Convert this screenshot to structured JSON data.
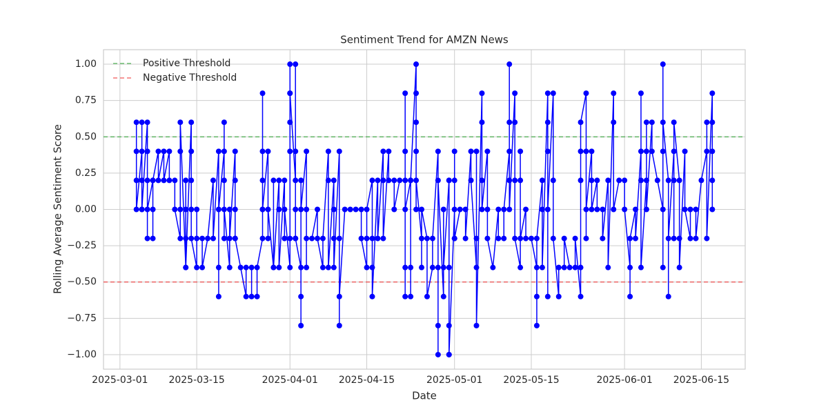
{
  "chart_data": {
    "type": "line",
    "title": "Sentiment Trend for AMZN News",
    "x_label": "Date",
    "y_label": "Rolling Average Sentiment Score",
    "grid": true,
    "legend": "upper left",
    "xlim": [
      "2025-02-26",
      "2025-06-23"
    ],
    "xticks": [
      "2025-03-01",
      "2025-03-15",
      "2025-04-01",
      "2025-04-15",
      "2025-05-01",
      "2025-05-15",
      "2025-06-01",
      "2025-06-15"
    ],
    "ylim": [
      -1.1,
      1.1
    ],
    "yticks": [
      {
        "value": -1,
        "label": "−1.00"
      },
      {
        "value": -0.75,
        "label": "−0.75"
      },
      {
        "value": -0.5,
        "label": "−0.50"
      },
      {
        "value": -0.25,
        "label": "−0.25"
      },
      {
        "value": 0,
        "label": "0.00"
      },
      {
        "value": 0.25,
        "label": "0.25"
      },
      {
        "value": 0.5,
        "label": "0.50"
      },
      {
        "value": 0.75,
        "label": "0.75"
      },
      {
        "value": 1,
        "label": "1.00"
      }
    ],
    "thresholds": [
      {
        "name": "Positive Threshold",
        "value": 0.5,
        "color": "#4caf50"
      },
      {
        "name": "Negative Threshold",
        "value": -0.5,
        "color": "#f05050"
      }
    ],
    "color": "#0000ff",
    "x": [
      "2025-03-04",
      "2025-03-04",
      "2025-03-04",
      "2025-03-04",
      "2025-03-05",
      "2025-03-05",
      "2025-03-05",
      "2025-03-05",
      "2025-03-05",
      "2025-03-06",
      "2025-03-06",
      "2025-03-06",
      "2025-03-06",
      "2025-03-06",
      "2025-03-07",
      "2025-03-07",
      "2025-03-07",
      "2025-03-07",
      "2025-03-08",
      "2025-03-08",
      "2025-03-09",
      "2025-03-09",
      "2025-03-10",
      "2025-03-10",
      "2025-03-11",
      "2025-03-11",
      "2025-03-12",
      "2025-03-12",
      "2025-03-12",
      "2025-03-12",
      "2025-03-13",
      "2025-03-13",
      "2025-03-13",
      "2025-03-13",
      "2025-03-13",
      "2025-03-14",
      "2025-03-14",
      "2025-03-14",
      "2025-03-14",
      "2025-03-14",
      "2025-03-15",
      "2025-03-15",
      "2025-03-15",
      "2025-03-16",
      "2025-03-16",
      "2025-03-17",
      "2025-03-18",
      "2025-03-18",
      "2025-03-19",
      "2025-03-19",
      "2025-03-19",
      "2025-03-19",
      "2025-03-20",
      "2025-03-20",
      "2025-03-20",
      "2025-03-20",
      "2025-03-20",
      "2025-03-21",
      "2025-03-21",
      "2025-03-21",
      "2025-03-22",
      "2025-03-22",
      "2025-03-22",
      "2025-03-22",
      "2025-03-22",
      "2025-03-23",
      "2025-03-24",
      "2025-03-24",
      "2025-03-25",
      "2025-03-25",
      "2025-03-26",
      "2025-03-26",
      "2025-03-27",
      "2025-03-27",
      "2025-03-27",
      "2025-03-27",
      "2025-03-27",
      "2025-03-27",
      "2025-03-28",
      "2025-03-28",
      "2025-03-28",
      "2025-03-29",
      "2025-03-29",
      "2025-03-29",
      "2025-03-30",
      "2025-03-30",
      "2025-03-30",
      "2025-03-31",
      "2025-03-31",
      "2025-03-31",
      "2025-04-01",
      "2025-04-01",
      "2025-04-01",
      "2025-04-01",
      "2025-04-01",
      "2025-04-01",
      "2025-04-01",
      "2025-04-02",
      "2025-04-02",
      "2025-04-02",
      "2025-04-02",
      "2025-04-02",
      "2025-04-02",
      "2025-04-03",
      "2025-04-03",
      "2025-04-03",
      "2025-04-03",
      "2025-04-03",
      "2025-04-04",
      "2025-04-04",
      "2025-04-04",
      "2025-04-04",
      "2025-04-05",
      "2025-04-06",
      "2025-04-06",
      "2025-04-07",
      "2025-04-07",
      "2025-04-08",
      "2025-04-08",
      "2025-04-08",
      "2025-04-09",
      "2025-04-09",
      "2025-04-09",
      "2025-04-09",
      "2025-04-10",
      "2025-04-10",
      "2025-04-10",
      "2025-04-10",
      "2025-04-11",
      "2025-04-12",
      "2025-04-13",
      "2025-04-14",
      "2025-04-14",
      "2025-04-15",
      "2025-04-15",
      "2025-04-15",
      "2025-04-16",
      "2025-04-16",
      "2025-04-16",
      "2025-04-16",
      "2025-04-17",
      "2025-04-17",
      "2025-04-18",
      "2025-04-18",
      "2025-04-18",
      "2025-04-19",
      "2025-04-19",
      "2025-04-20",
      "2025-04-20",
      "2025-04-21",
      "2025-04-22",
      "2025-04-22",
      "2025-04-22",
      "2025-04-22",
      "2025-04-22",
      "2025-04-22",
      "2025-04-23",
      "2025-04-23",
      "2025-04-23",
      "2025-04-23",
      "2025-04-24",
      "2025-04-24",
      "2025-04-24",
      "2025-04-24",
      "2025-04-24",
      "2025-04-24",
      "2025-04-25",
      "2025-04-25",
      "2025-04-25",
      "2025-04-26",
      "2025-04-26",
      "2025-04-27",
      "2025-04-27",
      "2025-04-28",
      "2025-04-28",
      "2025-04-28",
      "2025-04-28",
      "2025-04-28",
      "2025-04-29",
      "2025-04-29",
      "2025-04-29",
      "2025-04-30",
      "2025-04-30",
      "2025-04-30",
      "2025-04-30",
      "2025-04-30",
      "2025-04-30",
      "2025-05-01",
      "2025-05-01",
      "2025-05-01",
      "2025-05-01",
      "2025-05-01",
      "2025-05-02",
      "2025-05-03",
      "2025-05-03",
      "2025-05-04",
      "2025-05-04",
      "2025-05-05",
      "2025-05-05",
      "2025-05-05",
      "2025-05-05",
      "2025-05-06",
      "2025-05-06",
      "2025-05-06",
      "2025-05-06",
      "2025-05-07",
      "2025-05-07",
      "2025-05-07",
      "2025-05-08",
      "2025-05-09",
      "2025-05-09",
      "2025-05-10",
      "2025-05-10",
      "2025-05-11",
      "2025-05-11",
      "2025-05-11",
      "2025-05-11",
      "2025-05-11",
      "2025-05-12",
      "2025-05-12",
      "2025-05-12",
      "2025-05-12",
      "2025-05-13",
      "2025-05-13",
      "2025-05-13",
      "2025-05-13",
      "2025-05-14",
      "2025-05-14",
      "2025-05-15",
      "2025-05-16",
      "2025-05-16",
      "2025-05-16",
      "2025-05-16",
      "2025-05-17",
      "2025-05-17",
      "2025-05-17",
      "2025-05-18",
      "2025-05-18",
      "2025-05-18",
      "2025-05-18",
      "2025-05-18",
      "2025-05-19",
      "2025-05-19",
      "2025-05-19",
      "2025-05-20",
      "2025-05-20",
      "2025-05-21",
      "2025-05-21",
      "2025-05-22",
      "2025-05-23",
      "2025-05-23",
      "2025-05-24",
      "2025-05-24",
      "2025-05-24",
      "2025-05-24",
      "2025-05-24",
      "2025-05-25",
      "2025-05-25",
      "2025-05-25",
      "2025-05-25",
      "2025-05-26",
      "2025-05-26",
      "2025-05-26",
      "2025-05-27",
      "2025-05-27",
      "2025-05-28",
      "2025-05-28",
      "2025-05-29",
      "2025-05-29",
      "2025-05-30",
      "2025-05-30",
      "2025-05-30",
      "2025-05-31",
      "2025-06-01",
      "2025-06-01",
      "2025-06-02",
      "2025-06-02",
      "2025-06-02",
      "2025-06-03",
      "2025-06-03",
      "2025-06-04",
      "2025-06-04",
      "2025-06-04",
      "2025-06-04",
      "2025-06-05",
      "2025-06-05",
      "2025-06-05",
      "2025-06-05",
      "2025-06-06",
      "2025-06-06",
      "2025-06-07",
      "2025-06-08",
      "2025-06-08",
      "2025-06-08",
      "2025-06-08",
      "2025-06-08",
      "2025-06-09",
      "2025-06-09",
      "2025-06-09",
      "2025-06-10",
      "2025-06-10",
      "2025-06-10",
      "2025-06-10",
      "2025-06-11",
      "2025-06-11",
      "2025-06-11",
      "2025-06-12",
      "2025-06-12",
      "2025-06-13",
      "2025-06-13",
      "2025-06-14",
      "2025-06-14",
      "2025-06-15",
      "2025-06-16",
      "2025-06-16",
      "2025-06-16",
      "2025-06-17",
      "2025-06-17",
      "2025-06-17",
      "2025-06-17",
      "2025-06-17"
    ],
    "values": [
      0.2,
      0.6,
      0.4,
      0,
      0.4,
      0,
      0.6,
      0.2,
      0,
      0.6,
      0.2,
      0.4,
      -0.2,
      0,
      0.2,
      -0.2,
      0,
      0.2,
      0.4,
      0.2,
      0.4,
      0.2,
      0.4,
      0.2,
      0.2,
      0,
      -0.2,
      0,
      0.4,
      0.6,
      -0.4,
      0.2,
      -0.2,
      0,
      -0.4,
      0.6,
      0.4,
      0,
      0.2,
      -0.2,
      -0.4,
      0,
      -0.2,
      -0.2,
      -0.4,
      -0.2,
      0.2,
      -0.2,
      0.4,
      -0.6,
      -0.4,
      0,
      0.4,
      -0.2,
      0.6,
      0.2,
      0,
      -0.4,
      0,
      -0.2,
      0.4,
      0,
      -0.2,
      0.2,
      -0.2,
      -0.4,
      -0.6,
      -0.4,
      -0.4,
      -0.6,
      -0.6,
      -0.4,
      -0.2,
      0,
      0.4,
      0.8,
      0.2,
      0,
      0.4,
      -0.2,
      0,
      -0.4,
      0.2,
      -0.4,
      0.2,
      0,
      -0.4,
      0.2,
      -0.2,
      0,
      -0.4,
      -0.2,
      0.8,
      0.6,
      0.4,
      1.0,
      0.8,
      0.2,
      -0.2,
      0,
      0.4,
      1.0,
      -0.2,
      -0.4,
      -0.8,
      -0.6,
      0.2,
      0,
      0.4,
      0,
      -0.4,
      -0.2,
      -0.2,
      0,
      -0.2,
      -0.4,
      -0.2,
      0.4,
      0.2,
      -0.4,
      0.2,
      -0.2,
      0,
      -0.4,
      0.4,
      -0.2,
      -0.8,
      -0.6,
      0,
      0,
      0,
      0,
      -0.2,
      -0.4,
      -0.2,
      0,
      0.2,
      -0.2,
      -0.4,
      -0.6,
      0.2,
      -0.2,
      0.4,
      0.2,
      -0.2,
      0.4,
      0.2,
      0.2,
      0,
      0.2,
      0.2,
      -0.4,
      -0.6,
      0.4,
      0.8,
      0,
      0.2,
      -0.6,
      -0.4,
      0.2,
      1.0,
      0.8,
      0.6,
      0.4,
      0,
      0.2,
      -0.2,
      -0.4,
      0,
      -0.2,
      -0.6,
      -0.4,
      -0.2,
      0.4,
      -0.4,
      -1.0,
      -0.8,
      0.2,
      -0.6,
      0,
      -0.4,
      0.2,
      -1.0,
      -0.4,
      0.2,
      -0.8,
      -1.0,
      0,
      0.4,
      -0.2,
      0.2,
      -0.2,
      0,
      0,
      -0.2,
      0.4,
      0.2,
      -0.4,
      -0.2,
      0.4,
      -0.8,
      0.8,
      0.6,
      0.2,
      0,
      0.4,
      0,
      -0.2,
      -0.4,
      0,
      -0.2,
      -0.2,
      0,
      0.4,
      1.0,
      0.6,
      0.2,
      0,
      0.8,
      0.6,
      0.2,
      -0.2,
      -0.4,
      0.2,
      0.4,
      -0.2,
      0,
      -0.2,
      -0.2,
      -0.4,
      -0.8,
      -0.6,
      -0.2,
      0.2,
      0,
      -0.4,
      0.8,
      0.4,
      0.6,
      -0.6,
      0,
      0.8,
      0.2,
      -0.2,
      -0.6,
      -0.4,
      -0.4,
      -0.2,
      -0.4,
      -0.4,
      -0.2,
      -0.6,
      0.2,
      -0.4,
      0.4,
      0.6,
      0.8,
      0.4,
      -0.2,
      0,
      0.4,
      0.2,
      0,
      0.2,
      0,
      0,
      -0.2,
      0.2,
      -0.4,
      0.8,
      0.6,
      0,
      0.2,
      0.2,
      0,
      -0.4,
      -0.6,
      -0.2,
      0,
      -0.2,
      0.4,
      0.8,
      0.2,
      -0.4,
      0.2,
      0.6,
      0.4,
      0,
      0.6,
      0.4,
      0.2,
      0,
      -0.4,
      0.4,
      1.0,
      0.6,
      0.2,
      -0.6,
      -0.2,
      0.4,
      0.2,
      -0.2,
      0.6,
      0.2,
      -0.2,
      -0.4,
      0.4,
      0,
      -0.2,
      0,
      0,
      -0.2,
      0.2,
      0.4,
      0.6,
      -0.2,
      0.8,
      0.6,
      0,
      0.4,
      0.2
    ]
  }
}
